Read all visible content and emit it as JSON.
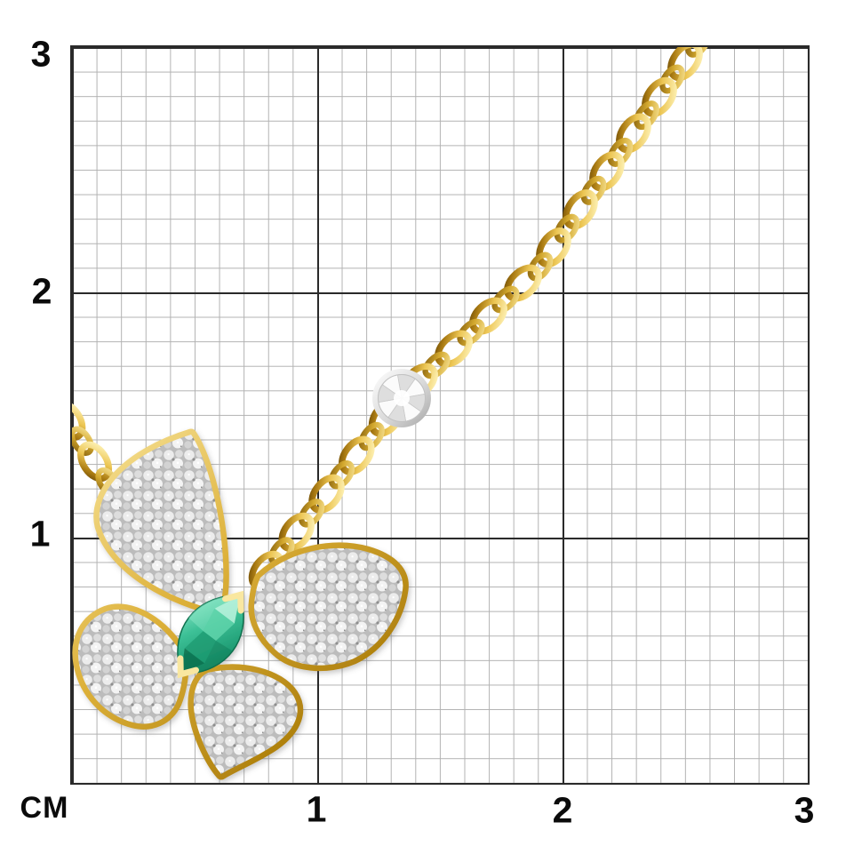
{
  "ruler": {
    "unit_label": "CM",
    "y_tick_labels": [
      "3",
      "2",
      "1"
    ],
    "x_tick_labels": [
      "1",
      "2",
      "3"
    ],
    "minor_divisions_per_major": 10
  },
  "grid": {
    "minor_line_color": "#b2b2b2",
    "major_line_color": "#2a2a2a",
    "background_color": "#ffffff"
  },
  "subject": {
    "kind": "butterfly-pendant-necklace-on-size-grid",
    "parts": {
      "chain": "gold-cable-chain",
      "station": "round-diamond-in-white-bezel",
      "wings": "pave-diamond-wings-with-gold-rims",
      "body": "marquise-emerald"
    },
    "colors": {
      "gold": "#d2a21d",
      "gold_highlight": "#f7e49b",
      "gold_shadow": "#8a6410",
      "emerald_green": "#2fae85",
      "pave_diamond_gray": "#e9e9e9",
      "bezel_platinum": "#d6d6d6"
    }
  }
}
